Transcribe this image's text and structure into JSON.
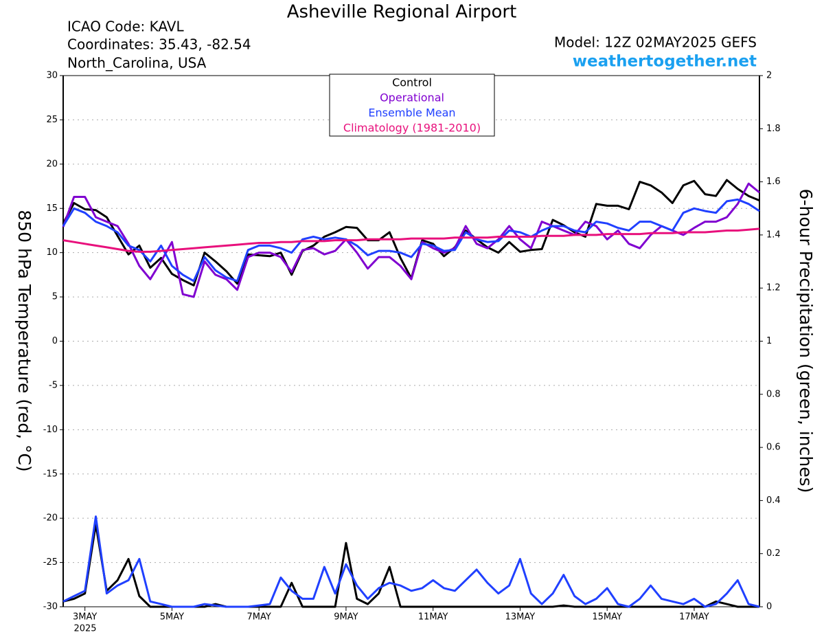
{
  "chart_data": {
    "type": "line",
    "title": "Asheville Regional Airport",
    "info_lines": [
      "ICAO Code: KAVL",
      "Coordinates: 35.43, -82.54",
      "North_Carolina, USA"
    ],
    "model": "Model: 12Z 02MAY2025 GEFS",
    "source": "weathertogether.net",
    "y_label": "850 hPa Temperature (red, °C)",
    "y2_label": "6-hour Precipitation (green, inches)",
    "x_axis_year": "2025",
    "grid": true,
    "legend_position": "top-center",
    "xlim": [
      2.5,
      18.5
    ],
    "xticks": [
      {
        "value": 3,
        "label": "3MAY"
      },
      {
        "value": 5,
        "label": "5MAY"
      },
      {
        "value": 7,
        "label": "7MAY"
      },
      {
        "value": 9,
        "label": "9MAY"
      },
      {
        "value": 11,
        "label": "11MAY"
      },
      {
        "value": 13,
        "label": "13MAY"
      },
      {
        "value": 15,
        "label": "15MAY"
      },
      {
        "value": 17,
        "label": "17MAY"
      }
    ],
    "ylim": [
      -30,
      30
    ],
    "yticks": [
      -30,
      -25,
      -20,
      -15,
      -10,
      -5,
      0,
      5,
      10,
      15,
      20,
      25,
      30
    ],
    "y2lim": [
      0,
      2
    ],
    "y2ticks": [
      0,
      0.2,
      0.4,
      0.6,
      0.8,
      1,
      1.2,
      1.4,
      1.6,
      1.8,
      2
    ],
    "x": [
      2.5,
      2.75,
      3,
      3.25,
      3.5,
      3.75,
      4,
      4.25,
      4.5,
      4.75,
      5,
      5.25,
      5.5,
      5.75,
      6,
      6.25,
      6.5,
      6.75,
      7,
      7.25,
      7.5,
      7.75,
      8,
      8.25,
      8.5,
      8.75,
      9,
      9.25,
      9.5,
      9.75,
      10,
      10.25,
      10.5,
      10.75,
      11,
      11.25,
      11.5,
      11.75,
      12,
      12.25,
      12.5,
      12.75,
      13,
      13.25,
      13.5,
      13.75,
      14,
      14.25,
      14.5,
      14.75,
      15,
      15.25,
      15.5,
      15.75,
      16,
      16.25,
      16.5,
      16.75,
      17,
      17.25,
      17.5,
      17.75,
      18,
      18.25,
      18.5
    ],
    "series": [
      {
        "name": "Control",
        "color": "#000000",
        "values": [
          13.3,
          15.6,
          14.9,
          14.8,
          14.0,
          11.9,
          9.8,
          10.8,
          8.3,
          9.4,
          7.6,
          6.9,
          6.3,
          10.0,
          9.0,
          7.9,
          6.5,
          9.8,
          9.7,
          9.6,
          10.0,
          7.5,
          10.2,
          10.8,
          11.8,
          12.3,
          12.9,
          12.8,
          11.4,
          11.4,
          12.3,
          9.4,
          7.1,
          11.4,
          11.0,
          9.6,
          10.6,
          12.5,
          11.5,
          10.6,
          10.0,
          11.2,
          10.1,
          10.3,
          10.4,
          13.7,
          13.1,
          12.3,
          11.8,
          15.5,
          15.3,
          15.3,
          14.9,
          18.0,
          17.6,
          16.8,
          15.6,
          17.6,
          18.1,
          16.6,
          16.4,
          18.2,
          17.2,
          16.4,
          15.9
        ]
      },
      {
        "name": "Operational",
        "color": "#8000d0",
        "values": [
          12.9,
          16.3,
          16.3,
          14.0,
          13.5,
          13.0,
          11.0,
          8.5,
          7.0,
          9.0,
          11.2,
          5.3,
          5.0,
          9.0,
          7.5,
          7.0,
          5.8,
          9.5,
          10.0,
          10.0,
          9.5,
          7.8,
          10.3,
          10.5,
          9.8,
          10.2,
          11.5,
          10.0,
          8.2,
          9.5,
          9.5,
          8.5,
          7.0,
          11.2,
          10.5,
          10.0,
          10.5,
          13.0,
          11.0,
          10.5,
          11.5,
          13.0,
          11.5,
          10.5,
          13.5,
          13.0,
          12.5,
          12.0,
          13.5,
          13.0,
          11.5,
          12.5,
          11.0,
          10.5,
          12.0,
          13.0,
          12.5,
          12.0,
          12.8,
          13.5,
          13.5,
          14.0,
          15.5,
          17.8,
          16.8
        ]
      },
      {
        "name": "Ensemble Mean",
        "color": "#2040ff",
        "values": [
          13.0,
          15.0,
          14.5,
          13.5,
          13.0,
          12.3,
          10.8,
          10.3,
          9.0,
          10.8,
          8.5,
          7.5,
          6.8,
          9.5,
          8.0,
          7.2,
          6.8,
          10.3,
          10.8,
          10.8,
          10.5,
          10.0,
          11.5,
          11.8,
          11.5,
          11.7,
          11.5,
          10.8,
          9.7,
          10.2,
          10.2,
          10.0,
          9.5,
          11.0,
          10.8,
          10.2,
          10.3,
          12.3,
          11.5,
          11.2,
          11.3,
          12.5,
          12.3,
          11.8,
          12.5,
          13.0,
          13.0,
          12.5,
          12.3,
          13.5,
          13.3,
          12.8,
          12.5,
          13.5,
          13.5,
          13.0,
          12.5,
          14.5,
          15.0,
          14.7,
          14.5,
          15.8,
          16.0,
          15.5,
          14.7
        ]
      },
      {
        "name": "Climatology (1981-2010)",
        "color": "#e8107c",
        "values": [
          11.4,
          11.2,
          11.0,
          10.8,
          10.6,
          10.4,
          10.2,
          10.1,
          10.1,
          10.2,
          10.3,
          10.4,
          10.5,
          10.6,
          10.7,
          10.8,
          10.9,
          11.0,
          11.1,
          11.1,
          11.2,
          11.2,
          11.3,
          11.3,
          11.3,
          11.4,
          11.4,
          11.4,
          11.5,
          11.5,
          11.5,
          11.5,
          11.6,
          11.6,
          11.6,
          11.6,
          11.7,
          11.7,
          11.7,
          11.7,
          11.8,
          11.8,
          11.8,
          11.8,
          11.9,
          11.9,
          11.9,
          12.0,
          12.0,
          12.0,
          12.1,
          12.1,
          12.1,
          12.1,
          12.2,
          12.2,
          12.2,
          12.3,
          12.3,
          12.3,
          12.4,
          12.5,
          12.5,
          12.6,
          12.7
        ]
      },
      {
        "name": "Control",
        "color": "#000000",
        "axis": "y2",
        "values": [
          0.02,
          0.03,
          0.05,
          0.31,
          0.06,
          0.1,
          0.18,
          0.04,
          0,
          0,
          0,
          0,
          0,
          0,
          0.01,
          0,
          0,
          0,
          0,
          0,
          0,
          0.09,
          0,
          0,
          0,
          0,
          0.24,
          0.03,
          0.01,
          0.05,
          0.15,
          0,
          0,
          0,
          0,
          0,
          0,
          0,
          0,
          0,
          0,
          0,
          0,
          0,
          0,
          0,
          0.005,
          0,
          0,
          0,
          0,
          0,
          0,
          0,
          0,
          0,
          0,
          0,
          0,
          0,
          0.02,
          0.01,
          0,
          0,
          0
        ]
      },
      {
        "name": "Ensemble Mean",
        "color": "#2040ff",
        "axis": "y2",
        "values": [
          0.02,
          0.04,
          0.06,
          0.34,
          0.05,
          0.08,
          0.1,
          0.18,
          0.02,
          0.01,
          0,
          0,
          0,
          0.01,
          0.005,
          0,
          0,
          0,
          0.005,
          0.01,
          0.11,
          0.06,
          0.03,
          0.03,
          0.15,
          0.05,
          0.16,
          0.08,
          0.03,
          0.07,
          0.09,
          0.08,
          0.06,
          0.07,
          0.1,
          0.07,
          0.06,
          0.1,
          0.14,
          0.09,
          0.05,
          0.08,
          0.18,
          0.05,
          0.01,
          0.05,
          0.12,
          0.04,
          0.01,
          0.03,
          0.07,
          0.01,
          0,
          0.03,
          0.08,
          0.03,
          0.02,
          0.01,
          0.03,
          0,
          0.01,
          0.05,
          0.1,
          0.01,
          0
        ]
      }
    ]
  }
}
